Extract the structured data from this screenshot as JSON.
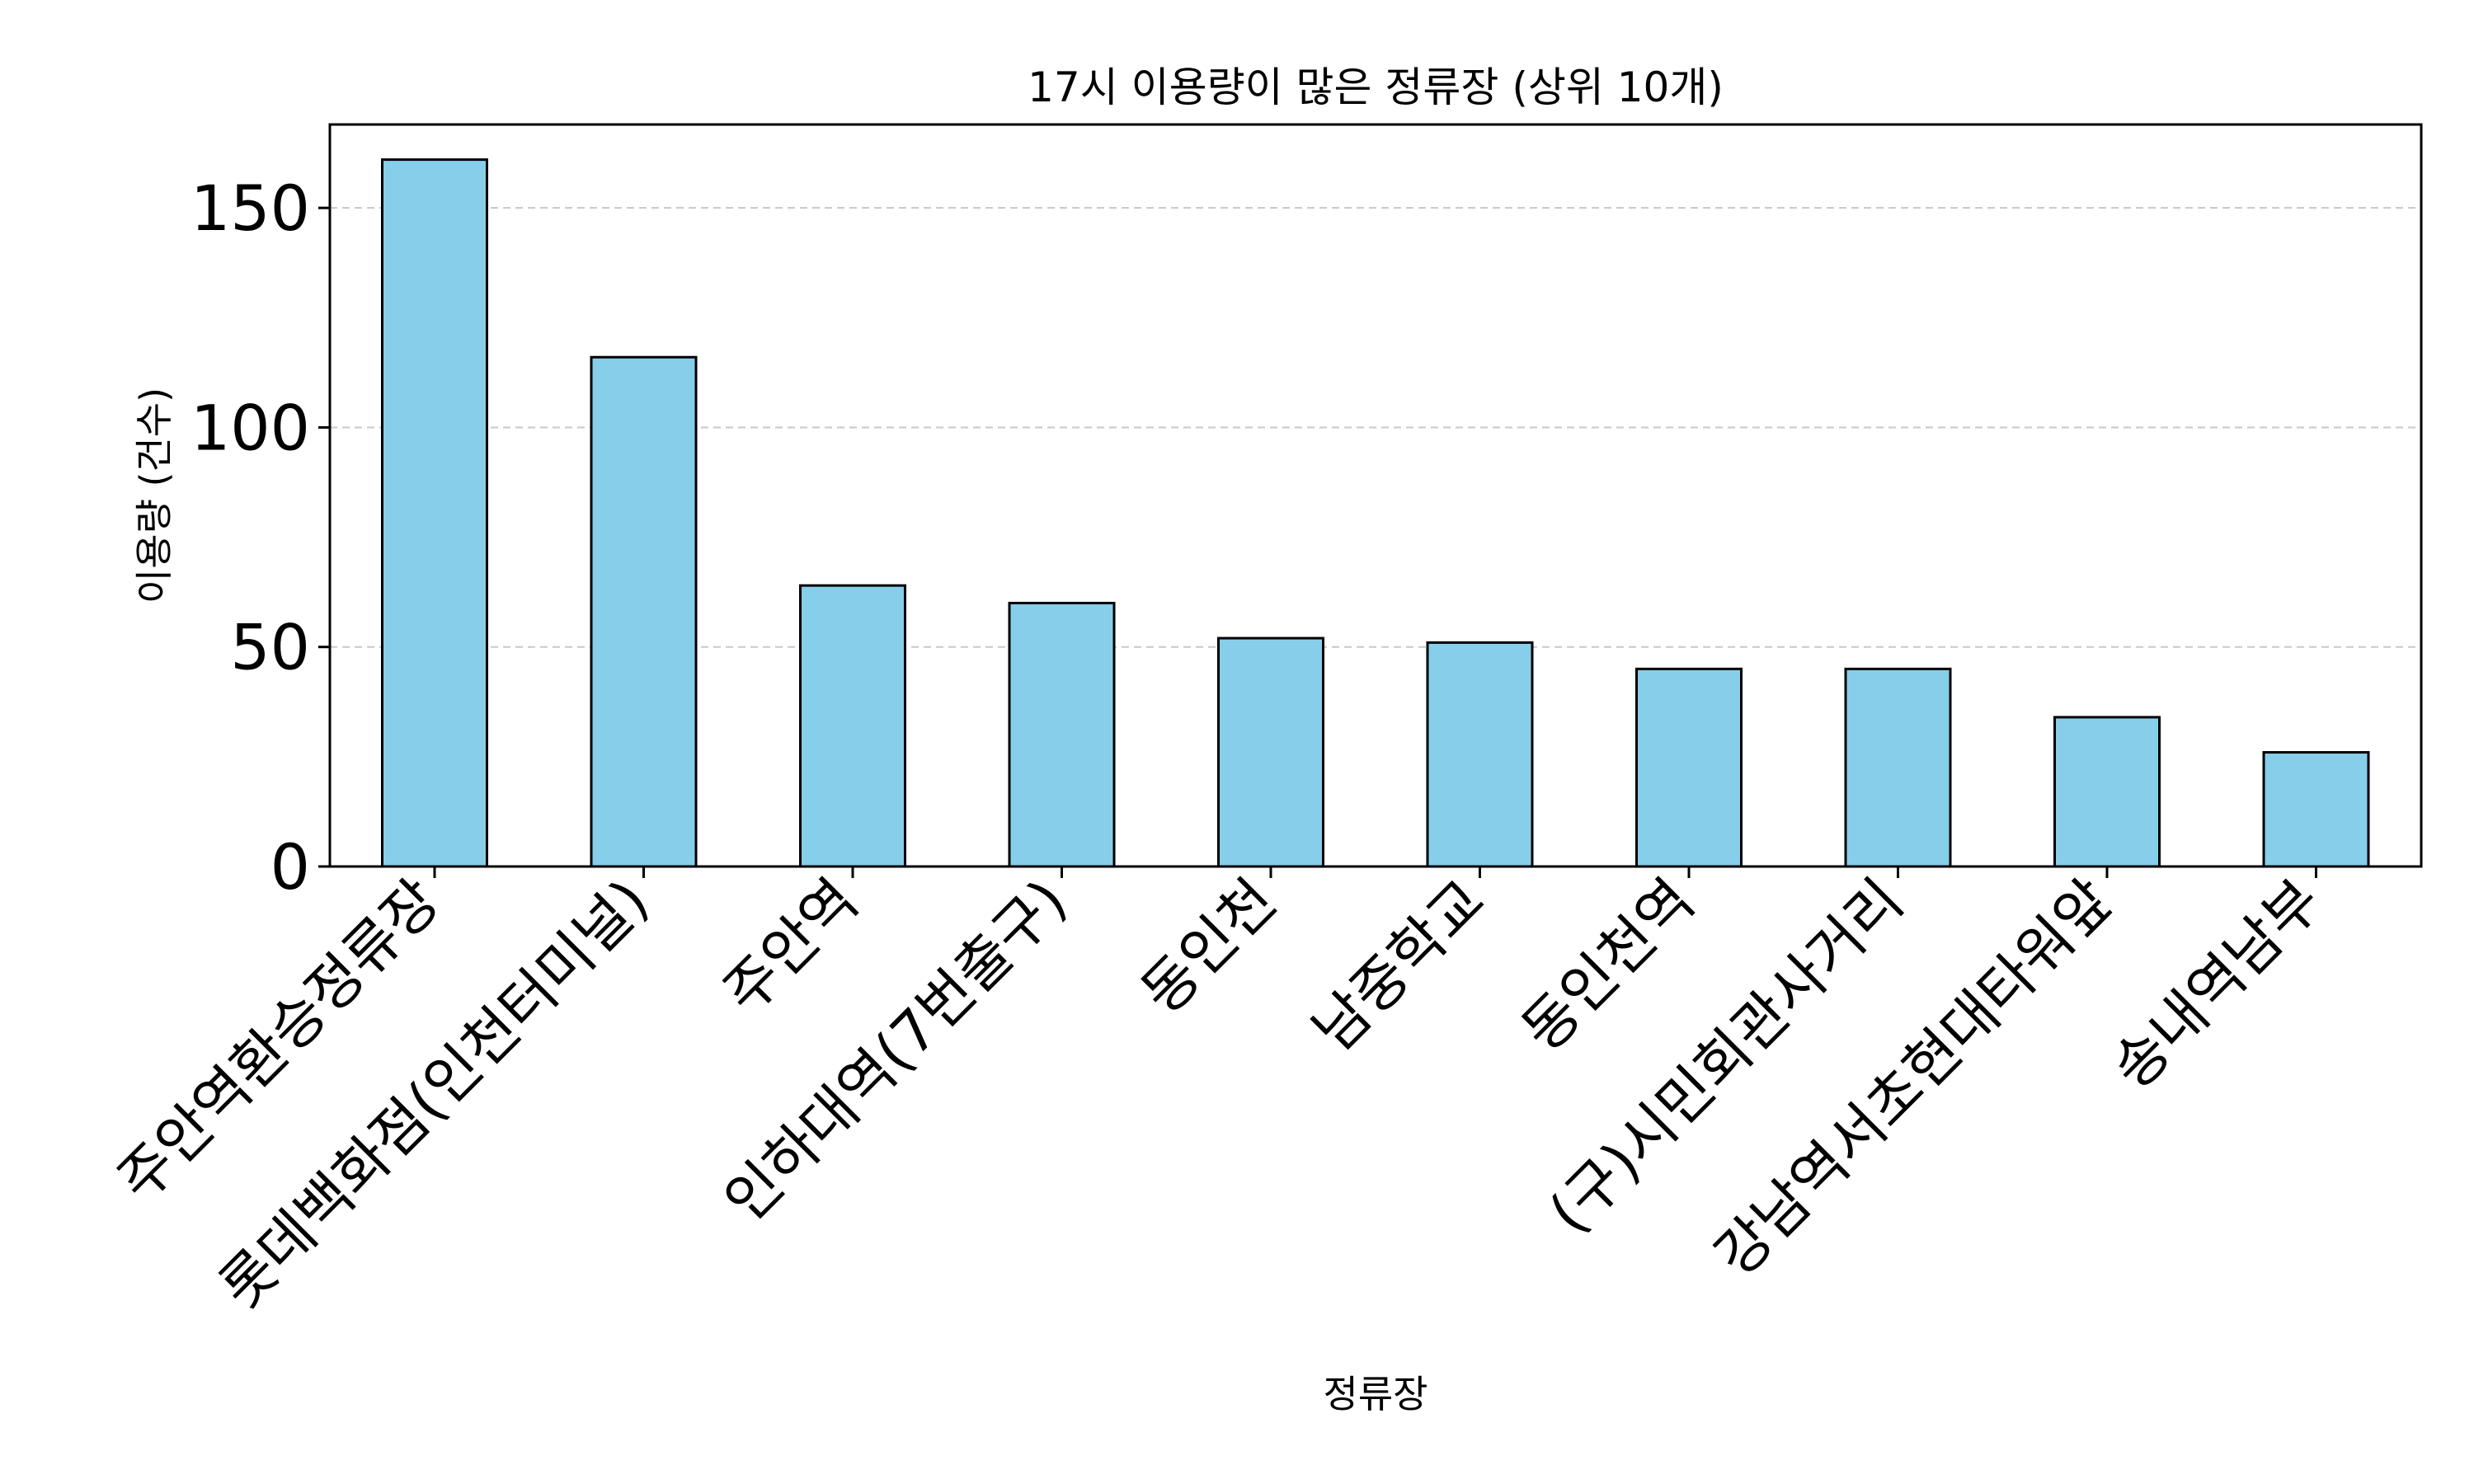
{
  "chart_data": {
    "type": "bar",
    "title": "17시 이용량이 많은 정류장 (상위 10개)",
    "xlabel": "정류장",
    "ylabel": "이용량 (건수)",
    "categories": [
      "주안역환승정류장",
      "롯데백화점(인천터미널)",
      "주안역",
      "인하대역(7번출구)",
      "동인천",
      "남중학교",
      "동인천역",
      "(구)시민회관사거리",
      "강남역서초현대타워앞",
      "송내역남부"
    ],
    "values": [
      161,
      116,
      64,
      60,
      52,
      51,
      45,
      45,
      34,
      26
    ],
    "ylim": [
      0,
      169
    ],
    "yticks": [
      "0",
      "50",
      "100",
      "150"
    ],
    "grid": "y-dashed",
    "bar_color": "#87ceeb",
    "bar_edge_color": "#000000",
    "grid_color": "#c8c8c8"
  }
}
